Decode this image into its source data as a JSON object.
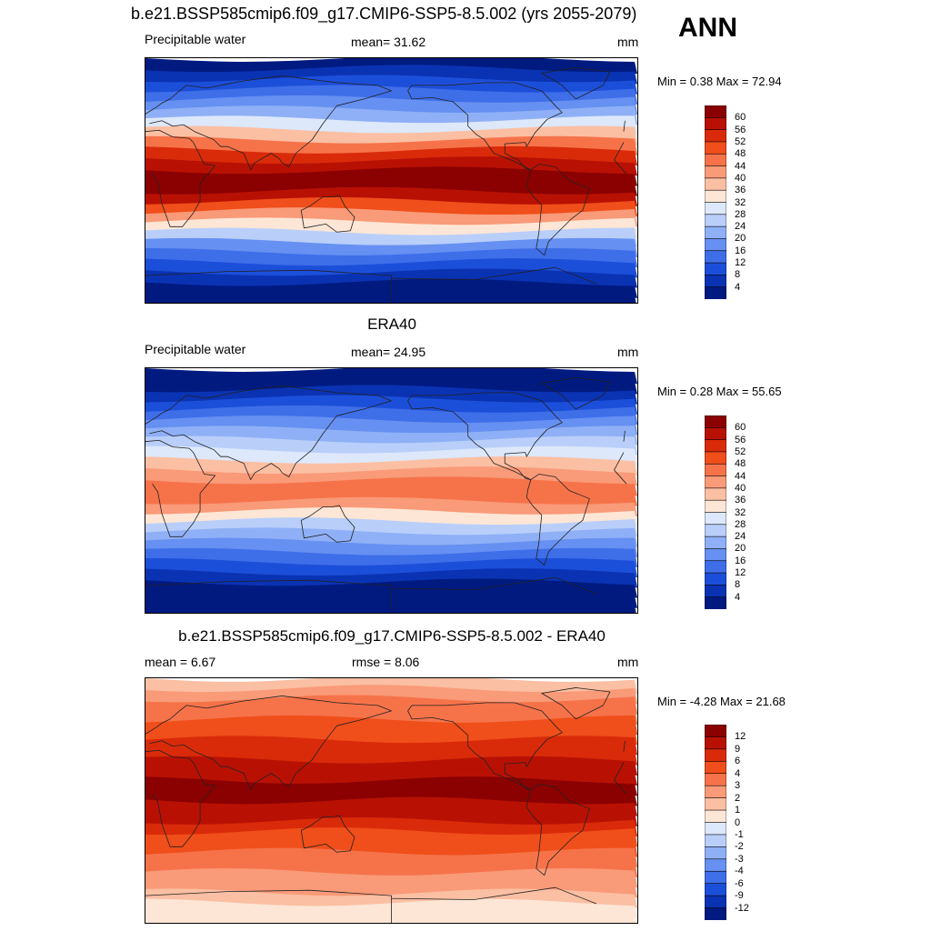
{
  "header": {
    "title": "b.e21.BSSP585cmip6.f09_g17.CMIP6-SSP5-8.5.002 (yrs 2055-2079)",
    "season": "ANN"
  },
  "panels": [
    {
      "id": "model",
      "left_label": "Precipitable water",
      "center_label": "mean=  31.62",
      "units": "mm",
      "minmax": "Min =   0.38 Max =  72.94"
    },
    {
      "id": "obs",
      "title": "ERA40",
      "left_label": "Precipitable water",
      "center_label": "mean=  24.95",
      "units": "mm",
      "minmax": "Min =   0.28 Max =  55.65"
    },
    {
      "id": "diff",
      "title": "b.e21.BSSP585cmip6.f09_g17.CMIP6-SSP5-8.5.002 - ERA40",
      "left_label": "mean =   6.67",
      "center_label": "rmse =   8.06",
      "units": "mm",
      "minmax": "Min =  -4.28 Max =  21.68"
    }
  ],
  "colorbars": {
    "abs": {
      "labels": [
        "60",
        "56",
        "52",
        "48",
        "44",
        "40",
        "36",
        "32",
        "28",
        "24",
        "20",
        "16",
        "12",
        "8",
        "4"
      ],
      "colors": [
        "#8b0000",
        "#b81104",
        "#d92b0a",
        "#f04e1a",
        "#f6734a",
        "#f99a78",
        "#fbbfa3",
        "#fde6d6",
        "#dde8fb",
        "#b9cffa",
        "#8fb0f6",
        "#6690f1",
        "#3f6ee9",
        "#1c4fd9",
        "#0a33b3",
        "#001a80"
      ]
    },
    "diff": {
      "labels": [
        "12",
        "9",
        "6",
        "4",
        "3",
        "2",
        "1",
        "0",
        "-1",
        "-2",
        "-3",
        "-4",
        "-6",
        "-9",
        "-12"
      ],
      "colors": [
        "#8b0000",
        "#b81104",
        "#d92b0a",
        "#f04e1a",
        "#f6734a",
        "#f99a78",
        "#fbbfa3",
        "#fde6d6",
        "#dde8fb",
        "#b9cffa",
        "#8fb0f6",
        "#6690f1",
        "#3f6ee9",
        "#1c4fd9",
        "#0a33b3",
        "#001a80"
      ]
    }
  }
}
